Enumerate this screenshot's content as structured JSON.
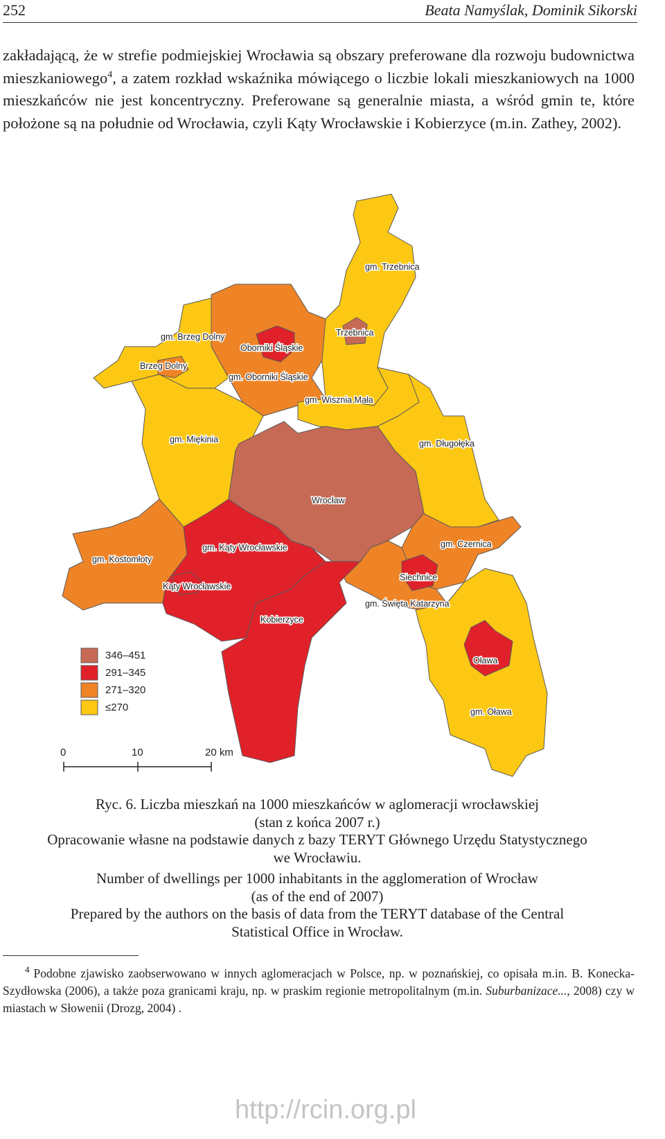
{
  "header": {
    "page_number": "252",
    "authors": "Beata Namyślak, Dominik Sikorski"
  },
  "body": {
    "text_before_note": "zakładającą, że w strefie podmiejskiej Wrocławia są obszary preferowane dla rozwoju budownictwa mieszkaniowego",
    "note_ref": "4",
    "text_after_note": ", a zatem rozkład wskaźnika mówiącego o liczbie lokali mieszkaniowych na 1000 mieszkańców nie jest koncentryczny. Preferowane są generalnie miasta, a wśród gmin te, które położone są na południe od Wrocławia, czyli Kąty Wrocławskie i Kobierzyce (m.in. Zathey, 2002)."
  },
  "figure": {
    "map_labels": [
      "gm. Trzebnica",
      "gm. Brzeg Dolny",
      "Trzebnica",
      "Oborniki Śląskie",
      "Brzeg Dolny",
      "gm. Oborniki Śląskie",
      "gm. Wisznia Mała",
      "gm. Miękinia",
      "gm. Długołęka",
      "Wrocław",
      "gm. Czernica",
      "gm. Kąty Wrocławskie",
      "gm. Kostomłoty",
      "Siechnice",
      "Kąty Wrocławskie",
      "gm. Święta Katarzyna",
      "Kobierzyce",
      "Oława",
      "gm. Oława"
    ],
    "legend": [
      {
        "label": "346–451",
        "color": "#c76a55"
      },
      {
        "label": "291–345",
        "color": "#e12129"
      },
      {
        "label": "271–320",
        "color": "#ef8427"
      },
      {
        "label": "≤270",
        "color": "#fdc813"
      }
    ],
    "scale_bar": [
      "0",
      "10",
      "20 km"
    ],
    "caption_pl": [
      "Ryc. 6. Liczba mieszkań na 1000 mieszkańców w aglomeracji wrocławskiej",
      "(stan z końca 2007 r.)",
      "Opracowanie własne na podstawie danych z bazy TERYT Głównego Urzędu Statystycznego",
      "we Wrocławiu."
    ],
    "caption_en": [
      "Number of dwellings per 1000 inhabitants in the agglomeration of Wrocław",
      "(as of the end of 2007)",
      "Prepared by the authors on the basis of data from the TERYT database of the Central",
      "Statistical Office in Wrocław."
    ]
  },
  "footnote": {
    "number": "4",
    "text_before": "Podobne zjawisko zaobserwowano w innych aglomeracjach w Polsce, np. w poznańskiej, co opisała m.in. B. Konecka-Szydłowska (2006), a także poza granicami kraju, np. w praskim regionie metropolitalnym (m.in. ",
    "italic": "Suburbanizace...",
    "text_after": ", 2008) czy w miastach w Słowenii (Drozg, 2004) ."
  },
  "footer": {
    "url": "http://rcin.org.pl"
  }
}
